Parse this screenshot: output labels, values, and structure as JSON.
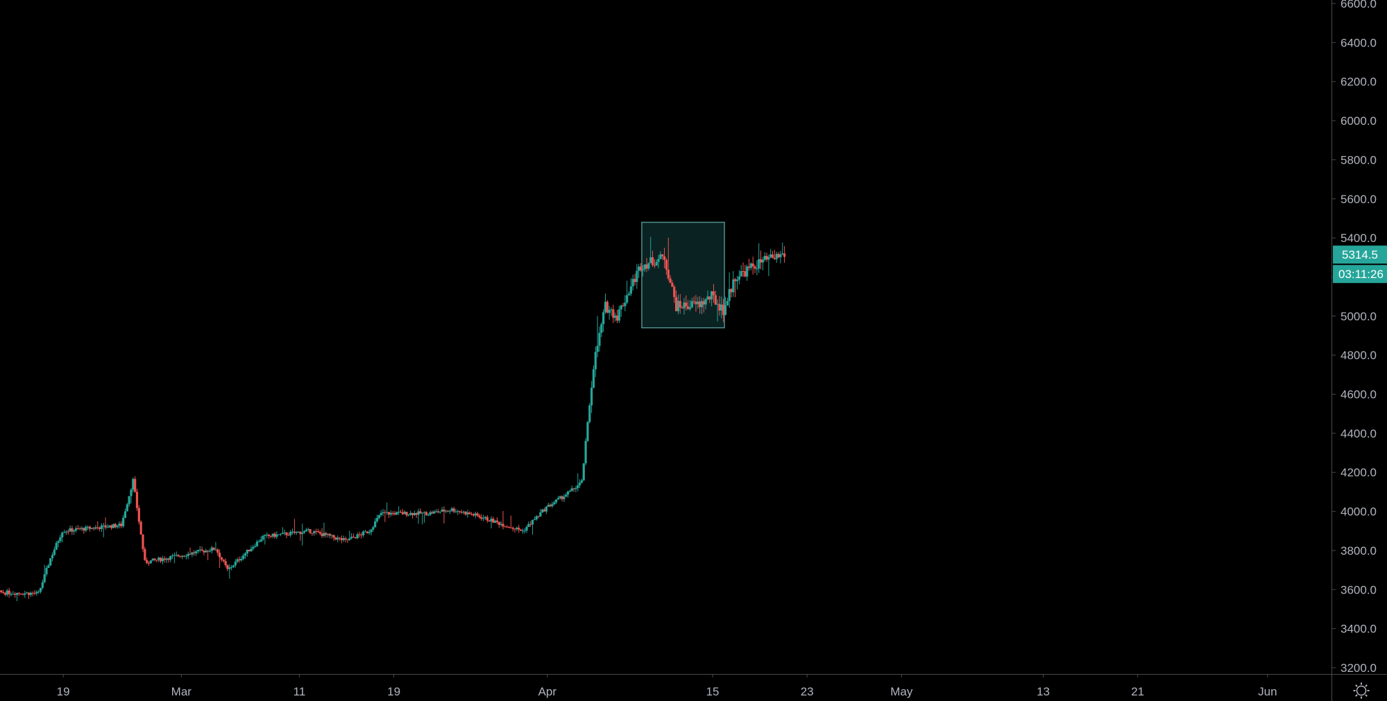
{
  "colors": {
    "background": "#000000",
    "up": "#26a69a",
    "down": "#ef5350",
    "axis_text": "#b2b5be",
    "axis_line": "#4a4a4a",
    "highlight_stroke": "#4f8f8a",
    "highlight_fill": "#0b2222",
    "price_badge": "#26a69a"
  },
  "chart_data": {
    "type": "candlestick",
    "title": "",
    "xlabel": "",
    "ylabel": "",
    "ylim": [
      3200,
      6600
    ],
    "grid": false,
    "y_ticks": [
      "3200.0",
      "3400.0",
      "3600.0",
      "3800.0",
      "4000.0",
      "4200.0",
      "4400.0",
      "4600.0",
      "4800.0",
      "5000.0",
      "5200.0",
      "5400.0",
      "5600.0",
      "5800.0",
      "6000.0",
      "6200.0",
      "6400.0",
      "6600.0"
    ],
    "x_ticks": [
      "19",
      "Mar",
      "11",
      "19",
      "Apr",
      "15",
      "23",
      "May",
      "13",
      "21",
      "Jun"
    ],
    "x_tick_dates": [
      "2019-02-19",
      "2019-03-01",
      "2019-03-11",
      "2019-03-19",
      "2019-04-01",
      "2019-04-15",
      "2019-04-23",
      "2019-05-01",
      "2019-05-13",
      "2019-05-21",
      "2019-06-01"
    ],
    "x_range_dates": [
      "2019-02-11",
      "2019-06-10"
    ],
    "last_price": "5314.5",
    "countdown": "03:11:26",
    "highlight_box": {
      "x_start": "2019-04-09",
      "x_end": "2019-04-16",
      "y_low": 4940,
      "y_high": 5480
    },
    "anchors": [
      [
        "2019-02-11",
        3590
      ],
      [
        "2019-02-17",
        3580
      ],
      [
        "2019-02-18",
        3760
      ],
      [
        "2019-02-19",
        3900
      ],
      [
        "2019-02-24",
        3930
      ],
      [
        "2019-02-25",
        4160
      ],
      [
        "2019-02-26",
        3740
      ],
      [
        "2019-03-04",
        3810
      ],
      [
        "2019-03-05",
        3700
      ],
      [
        "2019-03-08",
        3870
      ],
      [
        "2019-03-12",
        3900
      ],
      [
        "2019-03-15",
        3850
      ],
      [
        "2019-03-17",
        3900
      ],
      [
        "2019-03-18",
        3990
      ],
      [
        "2019-03-22",
        3990
      ],
      [
        "2019-03-24",
        4010
      ],
      [
        "2019-03-26",
        3980
      ],
      [
        "2019-03-30",
        3900
      ],
      [
        "2019-04-01",
        4020
      ],
      [
        "2019-04-03",
        4100
      ],
      [
        "2019-04-04",
        4150
      ],
      [
        "2019-04-05",
        4750
      ],
      [
        "2019-04-06",
        5050
      ],
      [
        "2019-04-07",
        5000
      ],
      [
        "2019-04-09",
        5260
      ],
      [
        "2019-04-11",
        5300
      ],
      [
        "2019-04-12",
        5050
      ],
      [
        "2019-04-14",
        5060
      ],
      [
        "2019-04-15",
        5100
      ],
      [
        "2019-04-16",
        5030
      ],
      [
        "2019-04-17",
        5200
      ],
      [
        "2019-04-19",
        5270
      ],
      [
        "2019-04-21",
        5314.5
      ]
    ]
  }
}
